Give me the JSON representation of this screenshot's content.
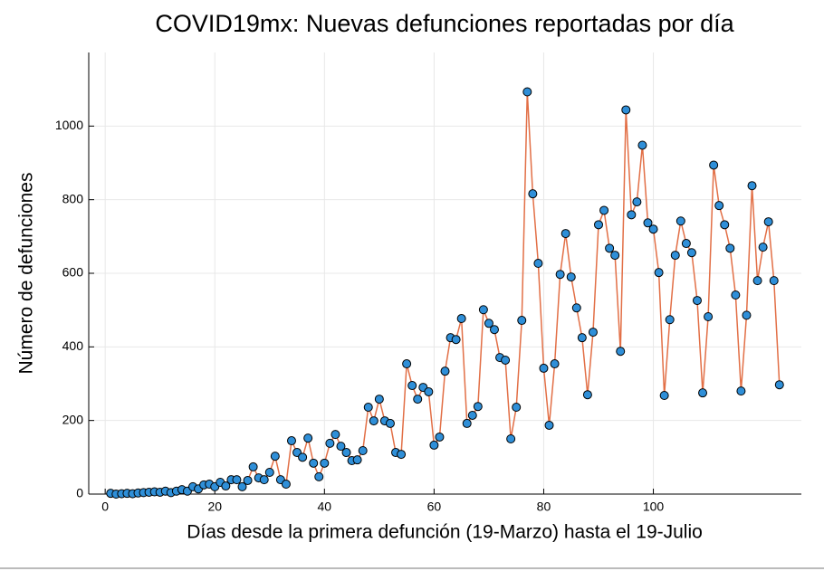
{
  "chart_data": {
    "type": "line",
    "title": "COVID19mx: Nuevas defunciones reportadas por día",
    "x_label": "Días desde la primera defunción (19-Marzo) hasta el 19-Julio",
    "y_label": "Número de defunciones",
    "x": [
      1,
      2,
      3,
      4,
      5,
      6,
      7,
      8,
      9,
      10,
      11,
      12,
      13,
      14,
      15,
      16,
      17,
      18,
      19,
      20,
      21,
      22,
      23,
      24,
      25,
      26,
      27,
      28,
      29,
      30,
      31,
      32,
      33,
      34,
      35,
      36,
      37,
      38,
      39,
      40,
      41,
      42,
      43,
      44,
      45,
      46,
      47,
      48,
      49,
      50,
      51,
      52,
      53,
      54,
      55,
      56,
      57,
      58,
      59,
      60,
      61,
      62,
      63,
      64,
      65,
      66,
      67,
      68,
      69,
      70,
      71,
      72,
      73,
      74,
      75,
      76,
      77,
      78,
      79,
      80,
      81,
      82,
      83,
      84,
      85,
      86,
      87,
      88,
      89,
      90,
      91,
      92,
      93,
      94,
      95,
      96,
      97,
      98,
      99,
      100,
      101,
      102,
      103,
      104,
      105,
      106,
      107,
      108,
      109,
      110,
      111,
      112,
      113,
      114,
      115,
      116,
      117,
      118,
      119,
      120,
      121,
      122,
      123
    ],
    "series": [
      {
        "name": "Nuevas defunciones",
        "line_color": "#e26f46",
        "marker_color": "#2f8fd8",
        "values": [
          2,
          0,
          1,
          2,
          1,
          3,
          4,
          5,
          6,
          5,
          8,
          4,
          8,
          12,
          8,
          20,
          14,
          25,
          27,
          20,
          32,
          22,
          39,
          39,
          20,
          37,
          74,
          44,
          39,
          59,
          103,
          39,
          27,
          145,
          113,
          100,
          152,
          84,
          47,
          84,
          138,
          162,
          130,
          113,
          91,
          93,
          118,
          236,
          199,
          258,
          199,
          192,
          113,
          108,
          354,
          295,
          258,
          290,
          278,
          133,
          155,
          334,
          425,
          420,
          477,
          192,
          214,
          238,
          501,
          464,
          447,
          371,
          364,
          150,
          236,
          472,
          1093,
          816,
          627,
          342,
          187,
          354,
          597,
          708,
          590,
          506,
          425,
          270,
          440,
          732,
          771,
          668,
          649,
          388,
          1044,
          759,
          794,
          948,
          737,
          720,
          602,
          268,
          474,
          649,
          742,
          681,
          656,
          526,
          275,
          482,
          894,
          784,
          732,
          668,
          541,
          280,
          486,
          838,
          580,
          671,
          740,
          580,
          297
        ]
      }
    ],
    "xlim": [
      -3,
      127
    ],
    "ylim": [
      0,
      1200
    ],
    "xticks": [
      0,
      20,
      40,
      60,
      80,
      100
    ],
    "yticks": [
      0,
      200,
      400,
      600,
      800,
      1000
    ],
    "grid": true
  }
}
